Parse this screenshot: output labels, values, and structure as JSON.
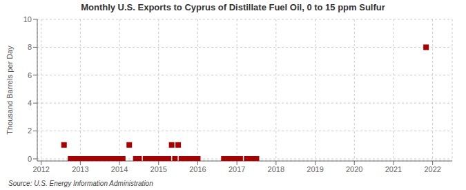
{
  "chart_data": {
    "type": "scatter",
    "title": "Monthly U.S. Exports to Cyprus of Distillate Fuel Oil, 0 to 15 ppm Sulfur",
    "y_label": "Thousand Barrels per Day",
    "annotations": [
      "Source: U.S. Energy Information Administration"
    ],
    "x": [
      2012.583,
      2012.75,
      2012.833,
      2012.917,
      2013.0,
      2013.083,
      2013.167,
      2013.25,
      2013.333,
      2013.417,
      2013.5,
      2013.583,
      2013.667,
      2013.75,
      2013.833,
      2013.917,
      2014.0,
      2014.083,
      2014.25,
      2014.417,
      2014.5,
      2014.667,
      2014.75,
      2014.833,
      2014.917,
      2015.0,
      2015.083,
      2015.167,
      2015.25,
      2015.333,
      2015.417,
      2015.5,
      2015.583,
      2015.667,
      2015.75,
      2015.833,
      2015.917,
      2016.0,
      2016.667,
      2016.75,
      2016.833,
      2016.917,
      2017.0,
      2017.083,
      2017.25,
      2017.333,
      2017.417,
      2017.5,
      2021.833
    ],
    "values": [
      1.0,
      0.0,
      0.0,
      0.0,
      0.0,
      0.0,
      0.0,
      0.0,
      0.0,
      0.0,
      0.0,
      0.0,
      0.0,
      0.0,
      0.0,
      0.0,
      0.0,
      0.0,
      1.0,
      0.0,
      0.0,
      0.0,
      0.0,
      0.0,
      0.0,
      0.0,
      0.0,
      0.0,
      0.0,
      1.0,
      0.0,
      1.0,
      0.0,
      0.0,
      0.0,
      0.0,
      0.0,
      0.0,
      0.0,
      0.0,
      0.0,
      0.0,
      0.0,
      0.0,
      0.0,
      0.0,
      0.0,
      0.0,
      8.0
    ],
    "color": "#aa0000",
    "marker": "square",
    "xlim": [
      2011.9,
      2022.5
    ],
    "ylim": [
      -0.15,
      10
    ],
    "xticks": [
      2012,
      2013,
      2014,
      2015,
      2016,
      2017,
      2018,
      2019,
      2020,
      2021,
      2022
    ],
    "yticks": [
      0,
      2,
      4,
      6,
      8,
      10
    ],
    "grid": true
  }
}
